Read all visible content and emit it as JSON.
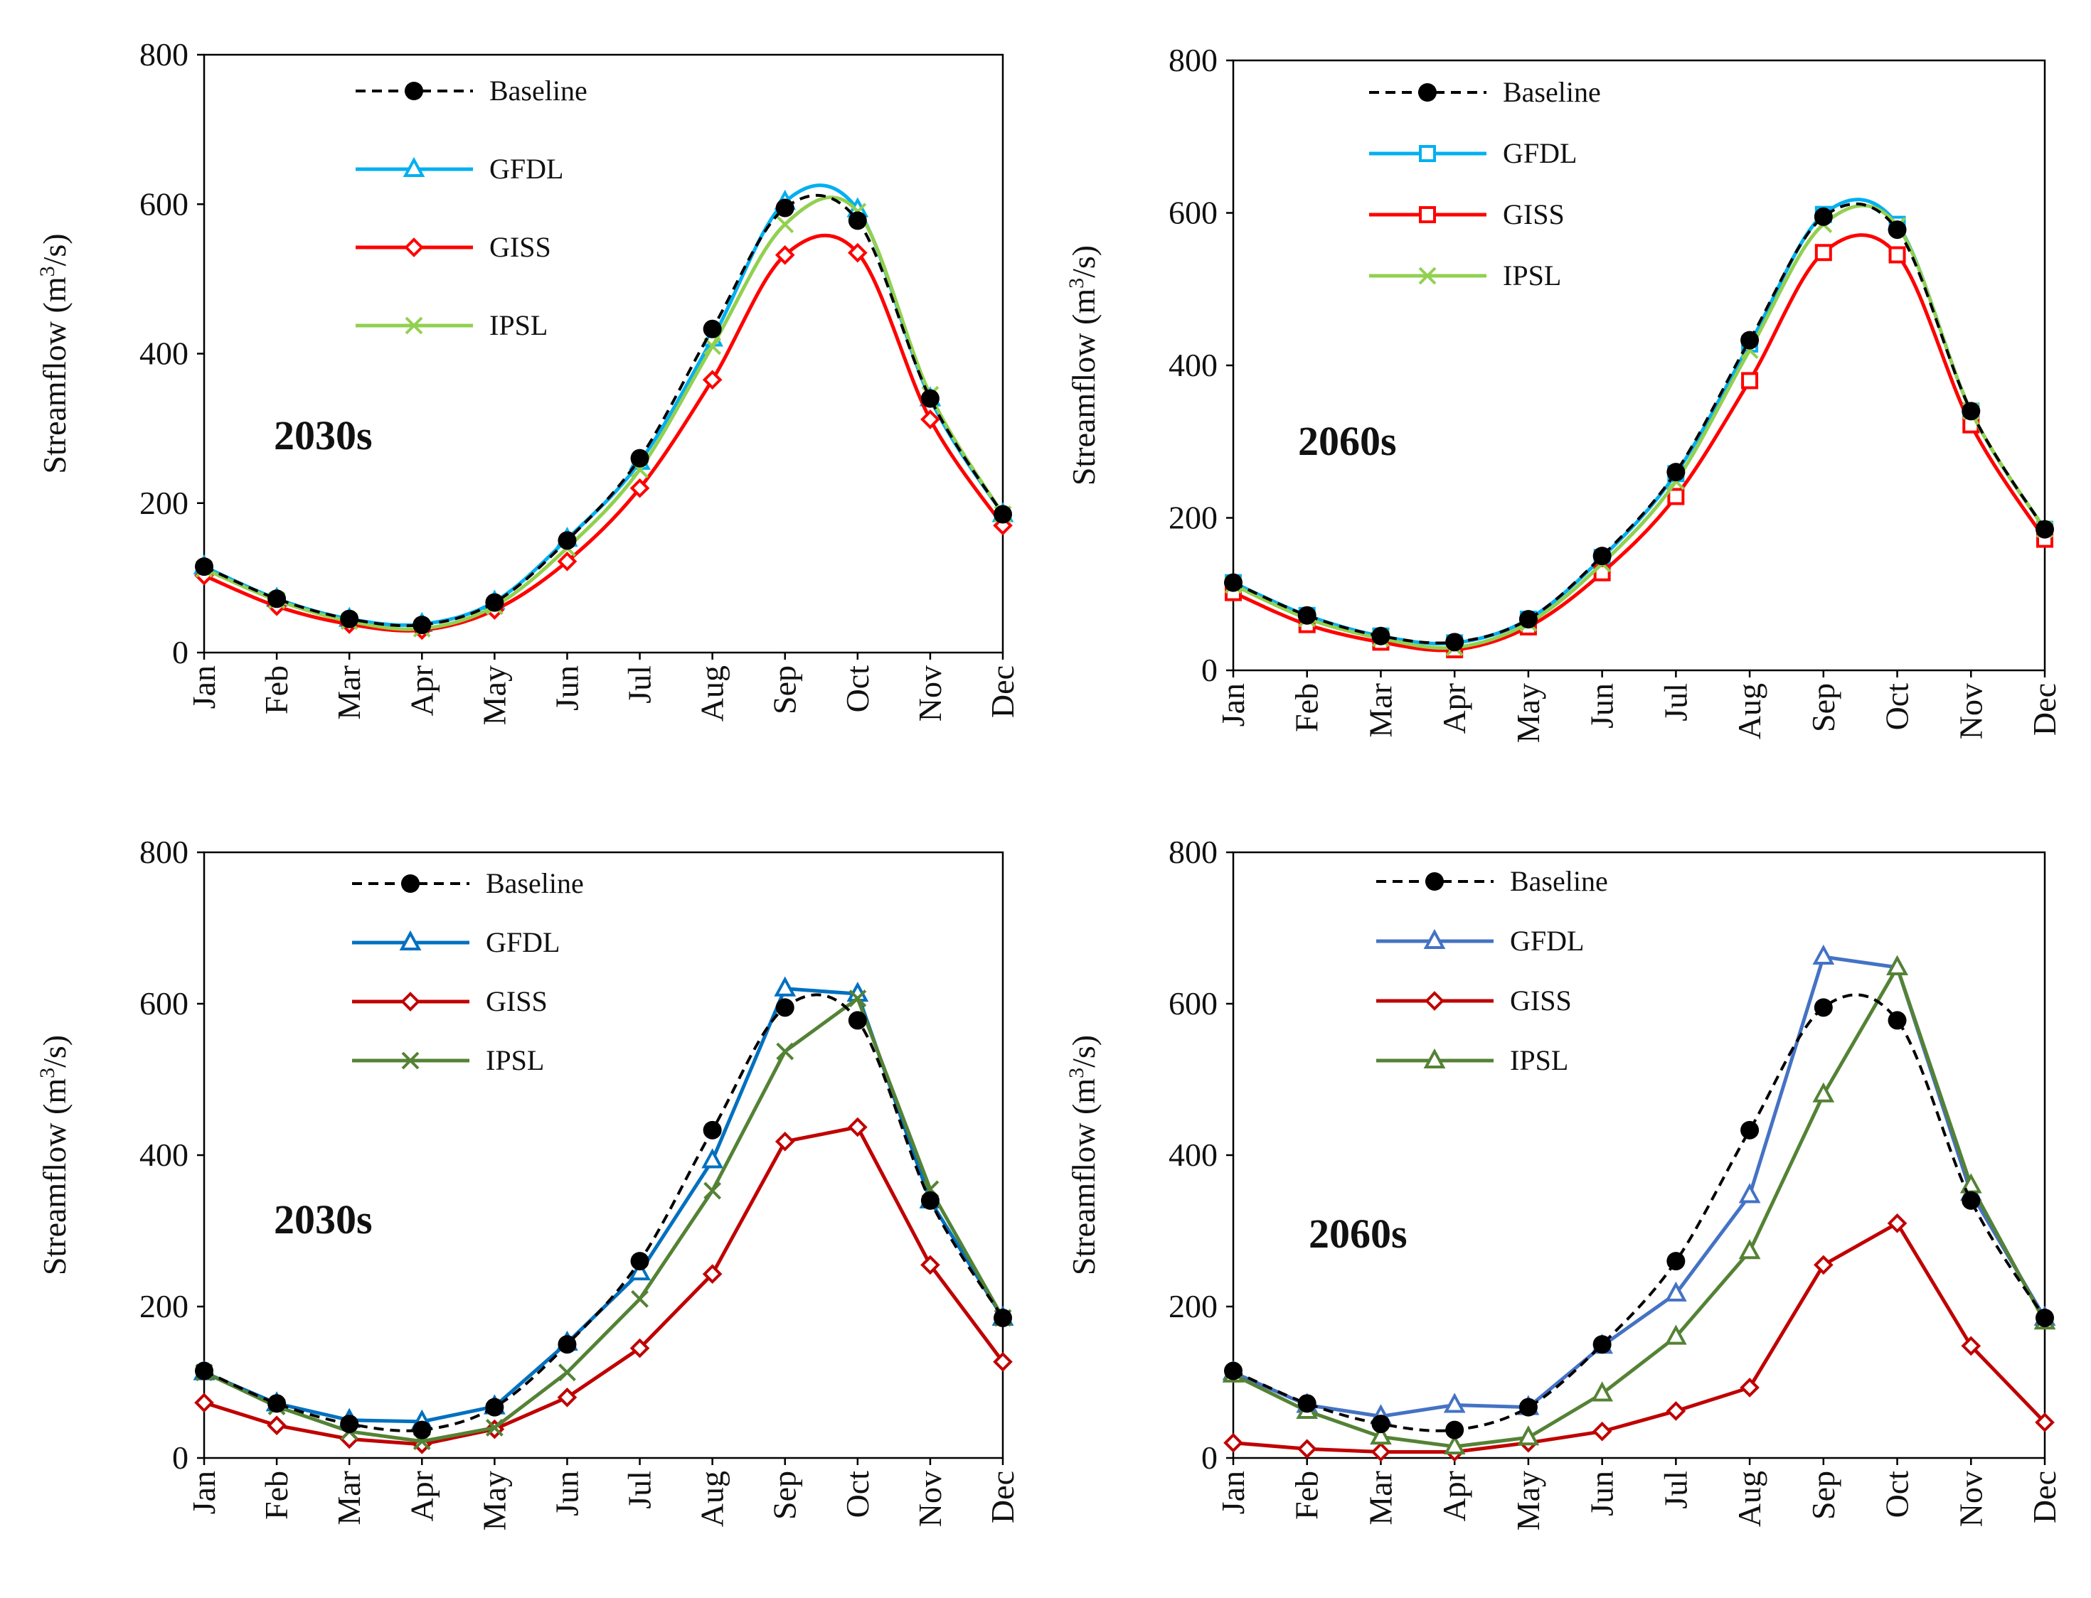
{
  "chart_data": [
    {
      "type": "line",
      "panel": "top-left",
      "period_label": "2030s",
      "ylabel_main": "Streamflow (m",
      "ylabel_sup": "3",
      "ylabel_tail": "/s)",
      "ylim": [
        0,
        800
      ],
      "yticks": [
        "0",
        "200",
        "400",
        "600",
        "800"
      ],
      "categories": [
        "Jan",
        "Feb",
        "Mar",
        "Apr",
        "May",
        "Jun",
        "Jul",
        "Aug",
        "Sep",
        "Oct",
        "Nov",
        "Dec"
      ],
      "smooth": true,
      "legend_placement": "top-left",
      "series": [
        {
          "name": "Baseline",
          "color": "#000000",
          "dashed": true,
          "marker": "circle",
          "values": [
            115,
            72,
            45,
            37,
            67,
            150,
            260,
            433,
            595,
            578,
            340,
            185
          ]
        },
        {
          "name": "GFDL",
          "color": "#00B0F0",
          "dashed": false,
          "marker": "triangle",
          "values": [
            115,
            72,
            45,
            38,
            68,
            152,
            255,
            420,
            603,
            593,
            340,
            185
          ]
        },
        {
          "name": "GISS",
          "color": "#FF0000",
          "dashed": false,
          "marker": "diamond",
          "values": [
            103,
            62,
            38,
            30,
            57,
            122,
            220,
            365,
            532,
            535,
            312,
            170
          ]
        },
        {
          "name": "IPSL",
          "color": "#92D050",
          "dashed": false,
          "marker": "x",
          "values": [
            112,
            70,
            42,
            32,
            62,
            140,
            245,
            410,
            573,
            590,
            345,
            185
          ]
        }
      ]
    },
    {
      "type": "line",
      "panel": "top-right",
      "period_label": "2060s",
      "ylabel_main": "Streamflow (m",
      "ylabel_sup": "3",
      "ylabel_tail": "/s)",
      "ylim": [
        0,
        800
      ],
      "yticks": [
        "0",
        "200",
        "400",
        "600",
        "800"
      ],
      "categories": [
        "Jan",
        "Feb",
        "Mar",
        "Apr",
        "May",
        "Jun",
        "Jul",
        "Aug",
        "Sep",
        "Oct",
        "Nov",
        "Dec"
      ],
      "smooth": true,
      "legend_placement": "top-left",
      "series": [
        {
          "name": "Baseline",
          "color": "#000000",
          "dashed": true,
          "marker": "circle",
          "values": [
            115,
            72,
            45,
            37,
            67,
            150,
            260,
            433,
            595,
            578,
            340,
            185
          ]
        },
        {
          "name": "GFDL",
          "color": "#00B0F0",
          "dashed": false,
          "marker": "square",
          "values": [
            115,
            72,
            45,
            36,
            67,
            148,
            258,
            428,
            598,
            585,
            340,
            185
          ]
        },
        {
          "name": "GISS",
          "color": "#FF0000",
          "dashed": false,
          "marker": "square",
          "values": [
            102,
            60,
            37,
            27,
            57,
            128,
            228,
            380,
            548,
            545,
            322,
            172
          ]
        },
        {
          "name": "IPSL",
          "color": "#92D050",
          "dashed": false,
          "marker": "x",
          "values": [
            112,
            68,
            42,
            30,
            62,
            140,
            248,
            420,
            585,
            583,
            340,
            185
          ]
        }
      ]
    },
    {
      "type": "line",
      "panel": "bottom-left",
      "period_label": "2030s",
      "ylabel_main": "Streamflow (m",
      "ylabel_sup": "3",
      "ylabel_tail": "/s)",
      "ylim": [
        0,
        800
      ],
      "yticks": [
        "0",
        "200",
        "400",
        "600",
        "800"
      ],
      "categories": [
        "Jan",
        "Feb",
        "Mar",
        "Apr",
        "May",
        "Jun",
        "Jul",
        "Aug",
        "Sep",
        "Oct",
        "Nov",
        "Dec"
      ],
      "smooth": false,
      "legend_placement": "top-left",
      "series": [
        {
          "name": "Baseline",
          "color": "#000000",
          "dashed": true,
          "marker": "circle",
          "values": [
            115,
            72,
            45,
            37,
            67,
            150,
            260,
            433,
            595,
            578,
            340,
            185
          ]
        },
        {
          "name": "GFDL",
          "color": "#0070C0",
          "dashed": false,
          "marker": "triangle",
          "values": [
            113,
            72,
            50,
            48,
            68,
            152,
            245,
            393,
            620,
            613,
            340,
            185
          ]
        },
        {
          "name": "GISS",
          "color": "#C00000",
          "dashed": false,
          "marker": "diamond",
          "values": [
            73,
            43,
            25,
            18,
            38,
            80,
            145,
            243,
            418,
            437,
            255,
            127
          ]
        },
        {
          "name": "IPSL",
          "color": "#548235",
          "dashed": false,
          "marker": "x",
          "values": [
            113,
            68,
            35,
            22,
            40,
            113,
            210,
            353,
            537,
            607,
            355,
            185
          ]
        }
      ]
    },
    {
      "type": "line",
      "panel": "bottom-right",
      "period_label": "2060s",
      "ylabel_main": "Streamflow (m",
      "ylabel_sup": "3",
      "ylabel_tail": "/s)",
      "ylim": [
        0,
        800
      ],
      "yticks": [
        "0",
        "200",
        "400",
        "600",
        "800"
      ],
      "categories": [
        "Jan",
        "Feb",
        "Mar",
        "Apr",
        "May",
        "Jun",
        "Jul",
        "Aug",
        "Sep",
        "Oct",
        "Nov",
        "Dec"
      ],
      "smooth": false,
      "legend_placement": "top-left",
      "series": [
        {
          "name": "Baseline",
          "color": "#000000",
          "dashed": true,
          "marker": "circle",
          "values": [
            115,
            72,
            45,
            37,
            67,
            150,
            260,
            433,
            595,
            578,
            340,
            185
          ]
        },
        {
          "name": "GFDL",
          "color": "#4472C4",
          "dashed": false,
          "marker": "triangle",
          "values": [
            113,
            70,
            55,
            70,
            67,
            148,
            217,
            347,
            662,
            648,
            350,
            185
          ]
        },
        {
          "name": "GISS",
          "color": "#C00000",
          "dashed": false,
          "marker": "diamond",
          "values": [
            20,
            12,
            8,
            8,
            20,
            35,
            62,
            93,
            255,
            310,
            148,
            47
          ]
        },
        {
          "name": "IPSL",
          "color": "#548235",
          "dashed": false,
          "marker": "triangle",
          "values": [
            110,
            62,
            28,
            15,
            27,
            85,
            160,
            273,
            480,
            648,
            360,
            180
          ]
        }
      ]
    }
  ]
}
